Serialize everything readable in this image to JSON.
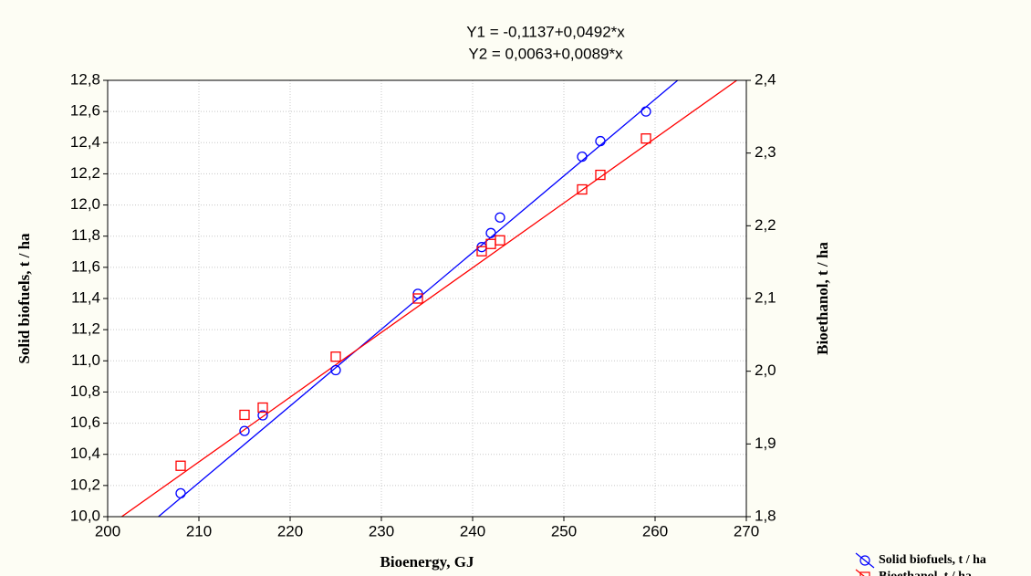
{
  "chart_data": {
    "type": "scatter",
    "title": "Y1 = -0,1137+0,0492*x",
    "subtitle": "Y2 = 0,0063+0,0089*x",
    "x_label": "Bioenergy, GJ",
    "y_label": "Solid biofuels, t / ha",
    "y2_label": "Bioethanol, t / ha",
    "xlim": [
      200,
      270
    ],
    "xticks": [
      200,
      210,
      220,
      230,
      240,
      250,
      260,
      270
    ],
    "ylim": [
      10.0,
      12.8
    ],
    "yticks": [
      {
        "value": 10.0,
        "label": "10,0"
      },
      {
        "value": 10.2,
        "label": "10,2"
      },
      {
        "value": 10.4,
        "label": "10,4"
      },
      {
        "value": 10.6,
        "label": "10,6"
      },
      {
        "value": 10.8,
        "label": "10,8"
      },
      {
        "value": 11.0,
        "label": "11,0"
      },
      {
        "value": 11.2,
        "label": "11,2"
      },
      {
        "value": 11.4,
        "label": "11,4"
      },
      {
        "value": 11.6,
        "label": "11,6"
      },
      {
        "value": 11.8,
        "label": "11,8"
      },
      {
        "value": 12.0,
        "label": "12,0"
      },
      {
        "value": 12.2,
        "label": "12,2"
      },
      {
        "value": 12.4,
        "label": "12,4"
      },
      {
        "value": 12.6,
        "label": "12,6"
      },
      {
        "value": 12.8,
        "label": "12,8"
      }
    ],
    "y2lim": [
      1.8,
      2.4
    ],
    "y2ticks": [
      {
        "value": 1.8,
        "label": "1,8"
      },
      {
        "value": 1.9,
        "label": "1,9"
      },
      {
        "value": 2.0,
        "label": "2,0"
      },
      {
        "value": 2.1,
        "label": "2,1"
      },
      {
        "value": 2.2,
        "label": "2,2"
      },
      {
        "value": 2.3,
        "label": "2,3"
      },
      {
        "value": 2.4,
        "label": "2,4"
      }
    ],
    "grid": true,
    "legend": "bottom-right",
    "series": [
      {
        "name": "Solid biofuels, t / ha",
        "color": "#0000ff",
        "marker": "circle",
        "axis": "y",
        "x": [
          208,
          215,
          217,
          225,
          234,
          241,
          242,
          243,
          252,
          254,
          259
        ],
        "values": [
          10.15,
          10.55,
          10.65,
          10.94,
          11.43,
          11.73,
          11.82,
          11.92,
          12.31,
          12.41,
          12.6
        ],
        "fit": {
          "intercept": -0.1137,
          "slope": 0.0492
        }
      },
      {
        "name": "Bioethanol, t / ha",
        "color": "#ff0000",
        "marker": "square",
        "axis": "y2",
        "x": [
          208,
          215,
          217,
          225,
          234,
          241,
          242,
          243,
          252,
          254,
          259
        ],
        "values": [
          1.87,
          1.94,
          1.95,
          2.02,
          2.1,
          2.165,
          2.175,
          2.18,
          2.25,
          2.27,
          2.32
        ],
        "fit": {
          "intercept": 0.0063,
          "slope": 0.0089
        }
      }
    ]
  }
}
